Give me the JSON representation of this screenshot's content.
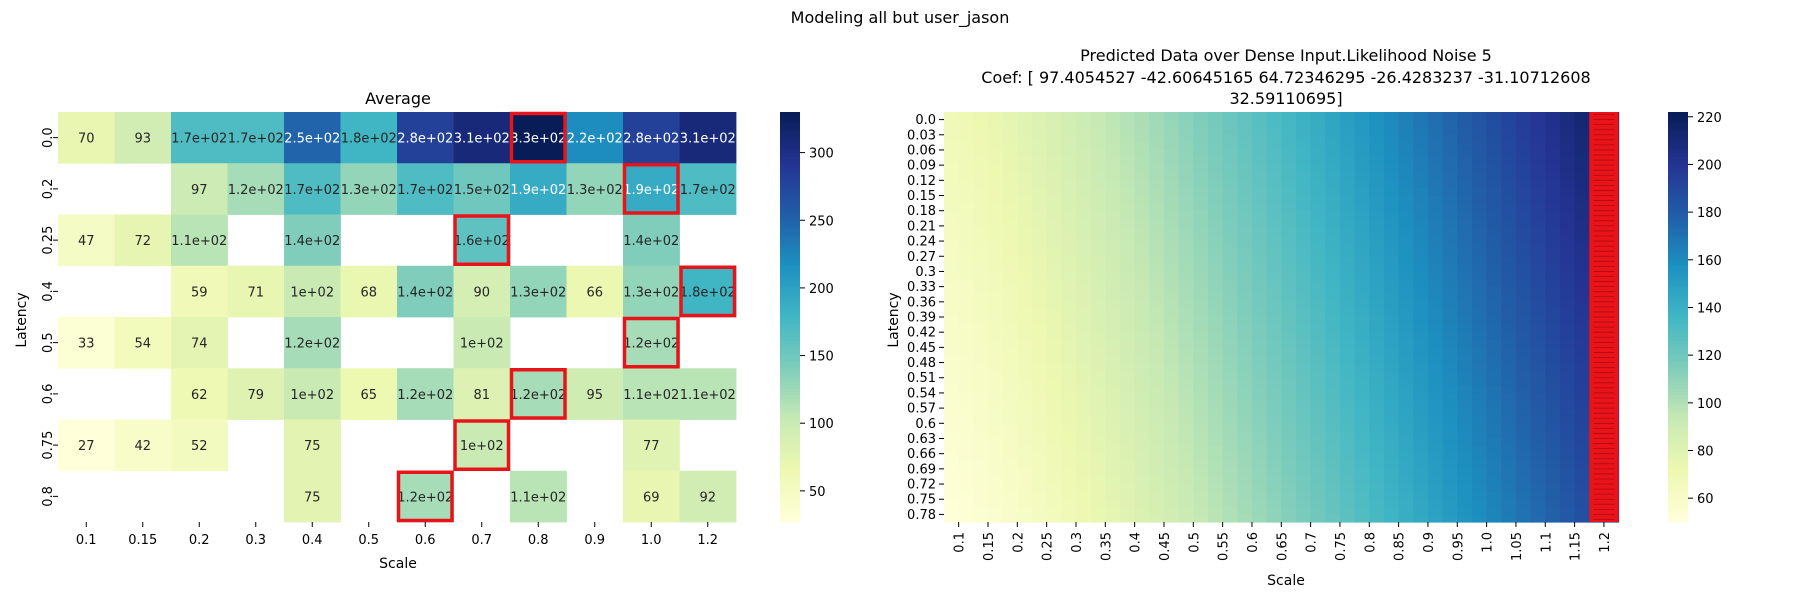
{
  "suptitle": "Modeling all but user_jason",
  "colors": {
    "highlight": "#e8141a",
    "cmap": "YlGnBu"
  },
  "chart_data": [
    {
      "type": "heatmap",
      "title": "Average",
      "xlabel": "Scale",
      "ylabel": "Latency",
      "x_tick_labels": [
        "0.1",
        "0.15",
        "0.2",
        "0.3",
        "0.4",
        "0.5",
        "0.6",
        "0.7",
        "0.8",
        "0.9",
        "1.0",
        "1.2"
      ],
      "y_tick_labels": [
        "0.0",
        "0.2",
        "0.25",
        "0.4",
        "0.5",
        "0.6",
        "0.75",
        "0.8"
      ],
      "vmin": 27,
      "vmax": 330,
      "colorbar_ticks": [
        50,
        100,
        150,
        200,
        250,
        300
      ],
      "values": [
        [
          70,
          93,
          170,
          170,
          250,
          180,
          280,
          310,
          330,
          220,
          280,
          310
        ],
        [
          null,
          null,
          97,
          120,
          170,
          130,
          170,
          150,
          190,
          130,
          190,
          170
        ],
        [
          47,
          72,
          110,
          null,
          140,
          null,
          null,
          160,
          null,
          null,
          140,
          null
        ],
        [
          null,
          null,
          59,
          71,
          100,
          68,
          140,
          90,
          130,
          66,
          130,
          180
        ],
        [
          33,
          54,
          74,
          null,
          120,
          null,
          null,
          100,
          null,
          null,
          120,
          null
        ],
        [
          null,
          null,
          62,
          79,
          100,
          65,
          120,
          81,
          120,
          95,
          110,
          110
        ],
        [
          27,
          42,
          52,
          null,
          75,
          null,
          null,
          100,
          null,
          null,
          77,
          null
        ],
        [
          null,
          null,
          null,
          null,
          75,
          null,
          120,
          null,
          110,
          null,
          69,
          92
        ]
      ],
      "annotations": [
        [
          "70",
          "93",
          "1.7e+02",
          "1.7e+02",
          "2.5e+02",
          "1.8e+02",
          "2.8e+02",
          "3.1e+02",
          "3.3e+02",
          "2.2e+02",
          "2.8e+02",
          "3.1e+02"
        ],
        [
          "",
          "",
          "97",
          "1.2e+02",
          "1.7e+02",
          "1.3e+02",
          "1.7e+02",
          "1.5e+02",
          "1.9e+02",
          "1.3e+02",
          "1.9e+02",
          "1.7e+02"
        ],
        [
          "47",
          "72",
          "1.1e+02",
          "",
          "1.4e+02",
          "",
          "",
          "1.6e+02",
          "",
          "",
          "1.4e+02",
          ""
        ],
        [
          "",
          "",
          "59",
          "71",
          "1e+02",
          "68",
          "1.4e+02",
          "90",
          "1.3e+02",
          "66",
          "1.3e+02",
          "1.8e+02"
        ],
        [
          "33",
          "54",
          "74",
          "",
          "1.2e+02",
          "",
          "",
          "1e+02",
          "",
          "",
          "1.2e+02",
          ""
        ],
        [
          "",
          "",
          "62",
          "79",
          "1e+02",
          "65",
          "1.2e+02",
          "81",
          "1.2e+02",
          "95",
          "1.1e+02",
          "1.1e+02"
        ],
        [
          "27",
          "42",
          "52",
          "",
          "75",
          "",
          "",
          "1e+02",
          "",
          "",
          "77",
          ""
        ],
        [
          "",
          "",
          "",
          "",
          "75",
          "",
          "1.2e+02",
          "",
          "1.1e+02",
          "",
          "69",
          "92"
        ]
      ],
      "highlighted_cells": [
        [
          0,
          8
        ],
        [
          1,
          10
        ],
        [
          2,
          7
        ],
        [
          3,
          11
        ],
        [
          4,
          10
        ],
        [
          5,
          8
        ],
        [
          6,
          7
        ],
        [
          7,
          6
        ]
      ]
    },
    {
      "type": "heatmap",
      "title": "Predicted Data over Dense Input.Likelihood Noise 5",
      "subtitle_lines": [
        "Coef: [ 97.4054527  -42.60645165  64.72346295 -26.4283237  -31.10712608",
        "32.59110695]"
      ],
      "xlabel": "Scale",
      "ylabel": "Latency",
      "x_tick_labels": [
        "0.1",
        "0.15",
        "0.2",
        "0.25",
        "0.3",
        "0.35",
        "0.4",
        "0.45",
        "0.5",
        "0.55",
        "0.6",
        "0.65",
        "0.7",
        "0.75",
        "0.8",
        "0.85",
        "0.9",
        "0.95",
        "1.0",
        "1.05",
        "1.1",
        "1.15",
        "1.2"
      ],
      "y_tick_labels": [
        "0.0",
        "0.03",
        "0.06",
        "0.09",
        "0.12",
        "0.15",
        "0.18",
        "0.21",
        "0.24",
        "0.27",
        "0.3",
        "0.33",
        "0.36",
        "0.39",
        "0.42",
        "0.45",
        "0.48",
        "0.51",
        "0.54",
        "0.57",
        "0.6",
        "0.63",
        "0.66",
        "0.69",
        "0.72",
        "0.75",
        "0.78"
      ],
      "vmin": 50,
      "vmax": 222,
      "colorbar_ticks": [
        60,
        80,
        100,
        120,
        140,
        160,
        180,
        200,
        220
      ],
      "coefficients": [
        97.4054527,
        -42.60645165,
        64.72346295,
        -26.4283237,
        -31.10712608,
        32.59110695
      ],
      "highlighted_column": "1.2"
    }
  ]
}
